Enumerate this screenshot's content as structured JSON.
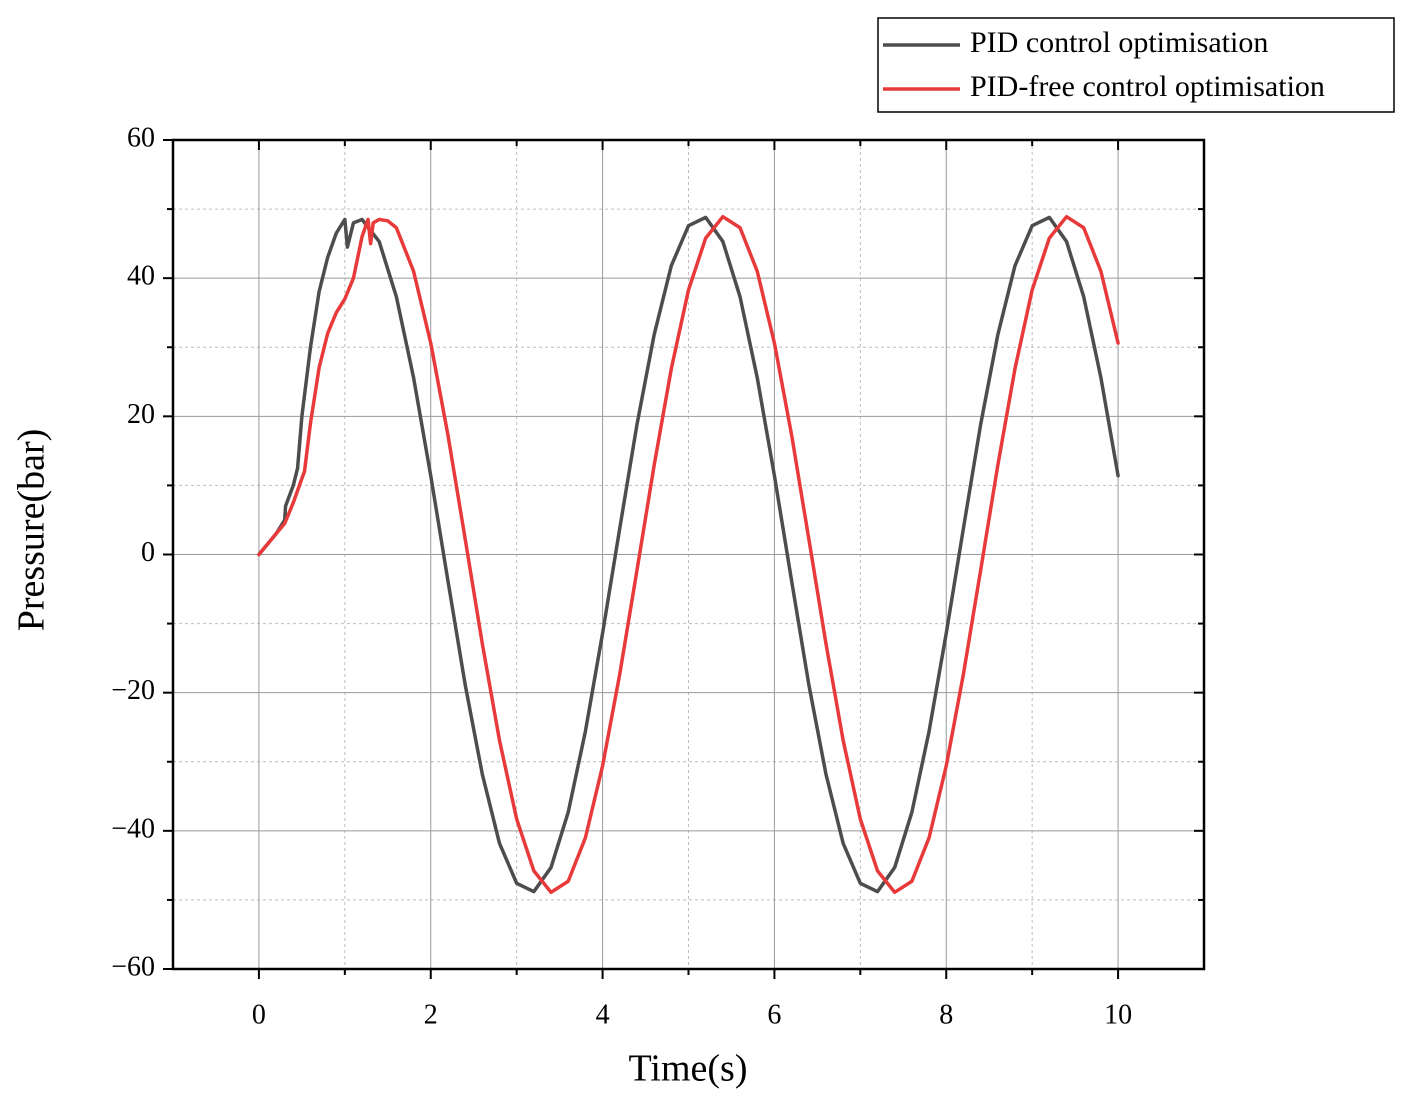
{
  "chart_data": {
    "type": "line",
    "x_label": "Time(s)",
    "y_label": "Pressure(bar)",
    "xlim": [
      -1,
      11
    ],
    "ylim": [
      -60,
      60
    ],
    "xticks": [
      0,
      2,
      4,
      6,
      8,
      10
    ],
    "yticks": [
      {
        "value": -60,
        "label": "−60"
      },
      {
        "value": -40,
        "label": "−40"
      },
      {
        "value": -20,
        "label": "−20"
      },
      0,
      20,
      40,
      60
    ],
    "xminorticks": [
      1,
      3,
      5,
      7,
      9
    ],
    "yminorticks": [
      -50,
      -30,
      -10,
      10,
      30,
      50
    ],
    "grid": true,
    "legend_position": "top-right",
    "series": [
      {
        "name": "PID control optimisation",
        "color": "#4d4d4d",
        "x": [
          0,
          0.1,
          0.2,
          0.3,
          0.31,
          0.4,
          0.45,
          0.5,
          0.6,
          0.7,
          0.8,
          0.9,
          1.0,
          1.03,
          1.1,
          1.2,
          1.4,
          1.6,
          1.8,
          2.0,
          2.2,
          2.4,
          2.6,
          2.8,
          3.0,
          3.2,
          3.4,
          3.6,
          3.8,
          4.0,
          4.2,
          4.4,
          4.6,
          4.8,
          5.0,
          5.2,
          5.4,
          5.6,
          5.8,
          6.0,
          6.2,
          6.4,
          6.6,
          6.8,
          7.0,
          7.2,
          7.4,
          7.6,
          7.8,
          8.0,
          8.2,
          8.4,
          8.6,
          8.8,
          9.0,
          9.2,
          9.4,
          9.6,
          9.8,
          10.0
        ],
        "values": [
          0,
          1.5,
          3,
          5,
          7,
          10,
          12.5,
          20,
          30,
          38,
          43,
          46.5,
          48.5,
          44.5,
          48,
          48.5,
          45.3,
          37.3,
          25.6,
          11.4,
          -3.8,
          -18.8,
          -31.8,
          -41.8,
          -47.6,
          -48.8,
          -45.3,
          -37.3,
          -25.6,
          -11.4,
          3.8,
          18.8,
          31.8,
          41.8,
          47.6,
          48.8,
          45.3,
          37.3,
          25.6,
          11.4,
          -3.8,
          -18.8,
          -31.8,
          -41.8,
          -47.6,
          -48.8,
          -45.3,
          -37.3,
          -25.6,
          -11.4,
          3.8,
          18.8,
          31.8,
          41.8,
          47.6,
          48.8,
          45.3,
          37.3,
          25.6,
          11.4
        ]
      },
      {
        "name": "PID-free control optimisation",
        "color": "#e83a3a",
        "x": [
          0,
          0.1,
          0.2,
          0.3,
          0.4,
          0.5,
          0.53,
          0.6,
          0.7,
          0.8,
          0.9,
          1.0,
          1.1,
          1.2,
          1.27,
          1.3,
          1.33,
          1.4,
          1.5,
          1.6,
          1.8,
          2.0,
          2.2,
          2.4,
          2.6,
          2.8,
          3.0,
          3.2,
          3.4,
          3.6,
          3.8,
          4.0,
          4.2,
          4.4,
          4.6,
          4.8,
          5.0,
          5.2,
          5.4,
          5.6,
          5.8,
          6.0,
          6.2,
          6.4,
          6.6,
          6.8,
          7.0,
          7.2,
          7.4,
          7.6,
          7.8,
          8.0,
          8.2,
          8.4,
          8.6,
          8.8,
          9.0,
          9.2,
          9.4,
          9.6,
          9.8,
          10.0
        ],
        "values": [
          0,
          1.5,
          3,
          4.5,
          7.5,
          11,
          12,
          19,
          27,
          32,
          35,
          37,
          40,
          46,
          48.5,
          45,
          48,
          48.5,
          48.3,
          47.3,
          41.0,
          30.6,
          17.3,
          2.3,
          -12.9,
          -26.9,
          -38.3,
          -45.8,
          -48.9,
          -47.3,
          -41.0,
          -30.6,
          -17.3,
          -2.3,
          12.9,
          26.9,
          38.3,
          45.8,
          48.9,
          47.3,
          41.0,
          30.6,
          17.3,
          2.3,
          -12.9,
          -26.9,
          -38.3,
          -45.8,
          -48.9,
          -47.3,
          -41.0,
          -30.6,
          -17.3,
          -2.3,
          12.9,
          26.9,
          38.3,
          45.8,
          48.9,
          47.3,
          41.0,
          30.6
        ]
      }
    ]
  }
}
